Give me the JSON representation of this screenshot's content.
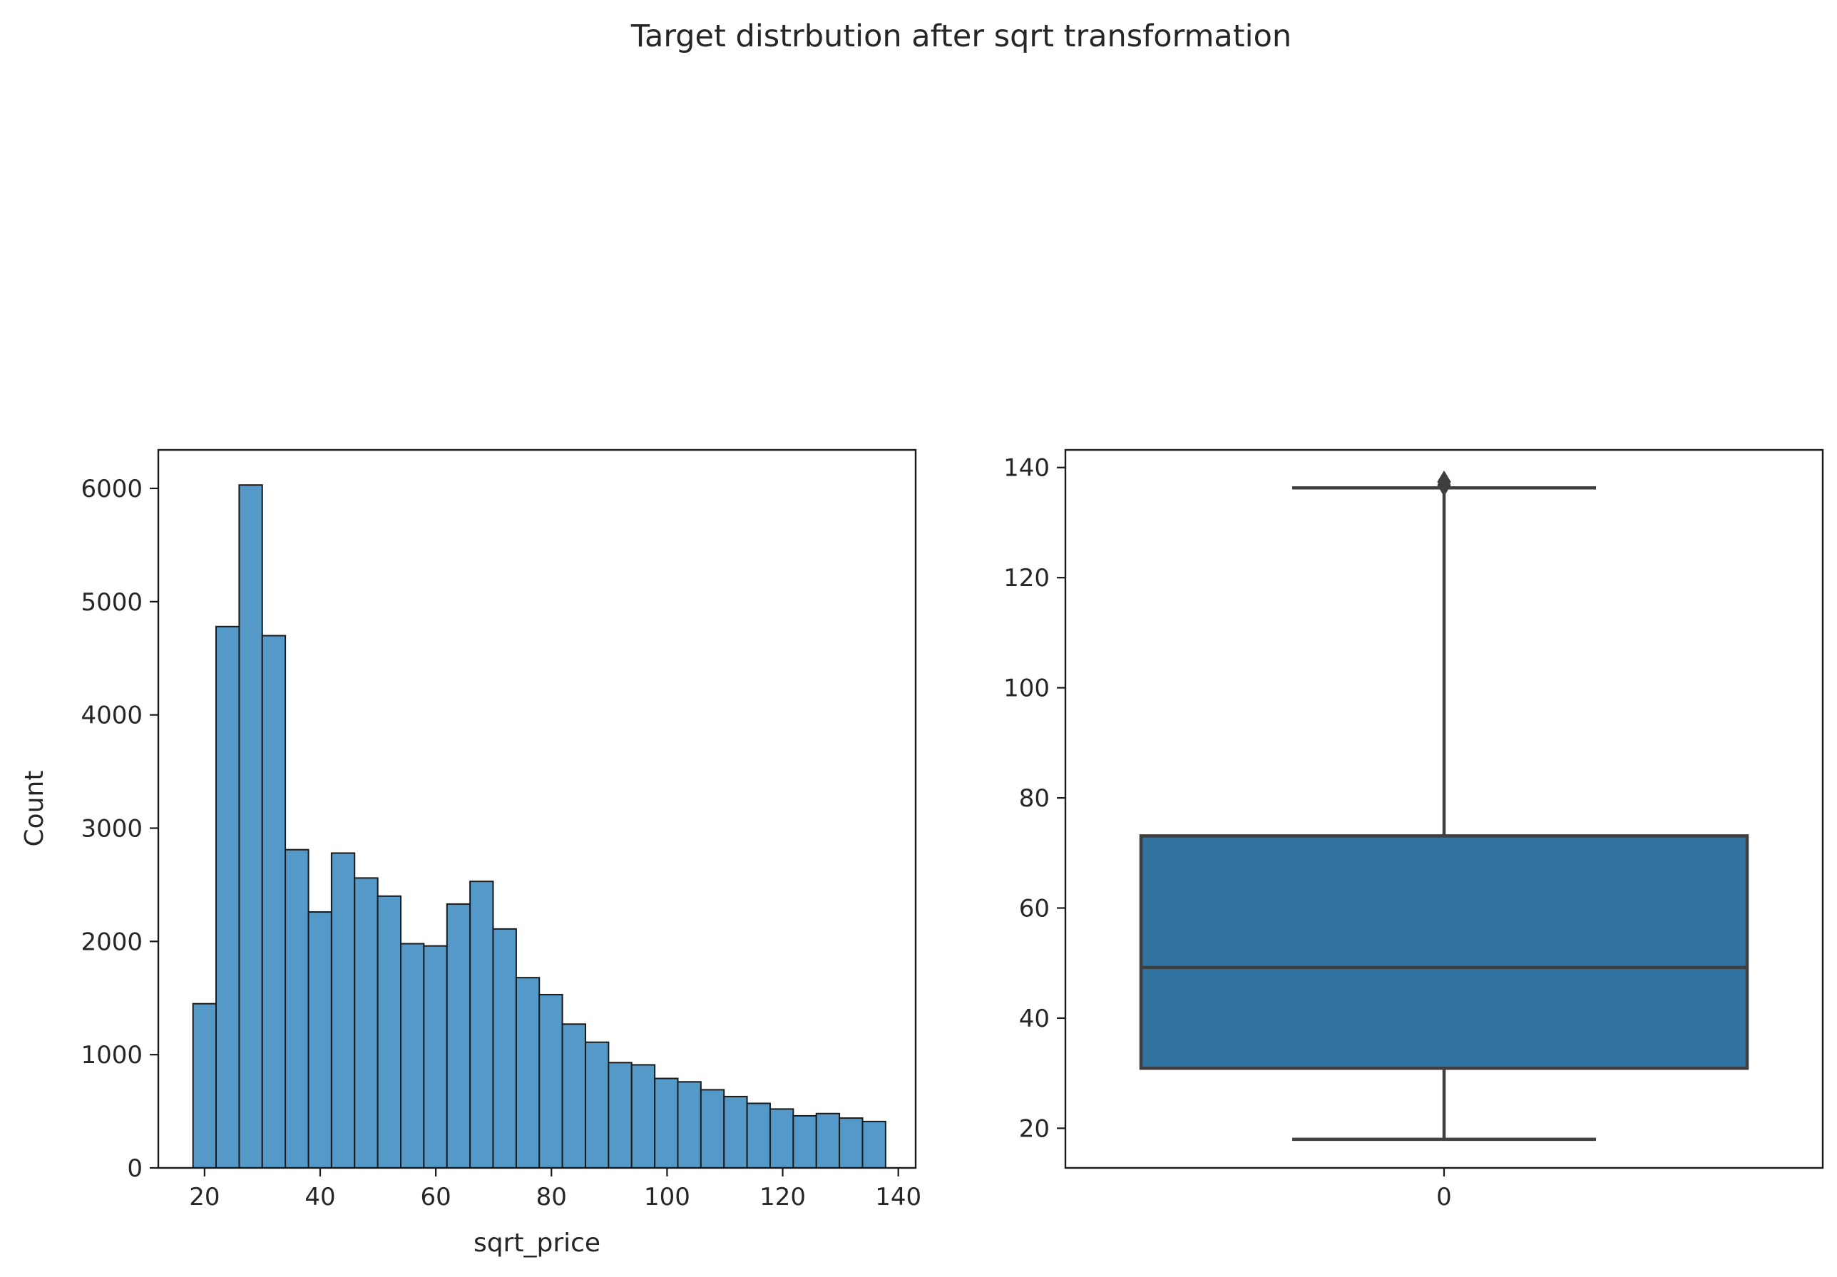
{
  "figure": {
    "title": "Target distrbution after sqrt transformation"
  },
  "colors": {
    "hist_bar": "#5499c7",
    "hist_edge": "#1a1a1a",
    "box_fill": "#3274a1",
    "box_line": "#3f3f3f",
    "axes": "#1a1a1a",
    "text": "#262626"
  },
  "chart_data": [
    {
      "type": "bar",
      "subtype": "histogram",
      "xlabel": "sqrt_price",
      "ylabel": "Count",
      "xlim": [
        12,
        143
      ],
      "ylim": [
        0,
        6340
      ],
      "xticks": [
        20,
        40,
        60,
        80,
        100,
        120,
        140
      ],
      "yticks": [
        0,
        1000,
        2000,
        3000,
        4000,
        5000,
        6000
      ],
      "bin_edges": [
        18.0,
        21.99,
        25.99,
        29.98,
        33.97,
        37.97,
        41.96,
        45.95,
        49.95,
        53.94,
        57.93,
        61.93,
        65.92,
        69.91,
        73.91,
        77.9,
        81.89,
        85.89,
        89.88,
        93.87,
        97.87,
        101.86,
        105.85,
        109.85,
        113.84,
        117.83,
        121.83,
        125.82,
        129.81,
        133.81,
        137.8
      ],
      "values": [
        1450,
        4780,
        6030,
        4700,
        2810,
        2260,
        2780,
        2560,
        2400,
        1980,
        1960,
        2330,
        2530,
        2110,
        1680,
        1530,
        1270,
        1110,
        930,
        910,
        790,
        760,
        690,
        630,
        570,
        520,
        460,
        480,
        440,
        410
      ]
    },
    {
      "type": "box",
      "categories": [
        "0"
      ],
      "xlabel": "",
      "ylabel": "",
      "ylim": [
        12.8,
        143.2
      ],
      "yticks": [
        20,
        40,
        60,
        80,
        100,
        120,
        140
      ],
      "boxes": [
        {
          "category": "0",
          "whisker_low": 18,
          "q1": 30.9,
          "median": 49.2,
          "q3": 73.1,
          "whisker_high": 136.3,
          "outliers": [
            136.8,
            137.4
          ]
        }
      ]
    }
  ]
}
